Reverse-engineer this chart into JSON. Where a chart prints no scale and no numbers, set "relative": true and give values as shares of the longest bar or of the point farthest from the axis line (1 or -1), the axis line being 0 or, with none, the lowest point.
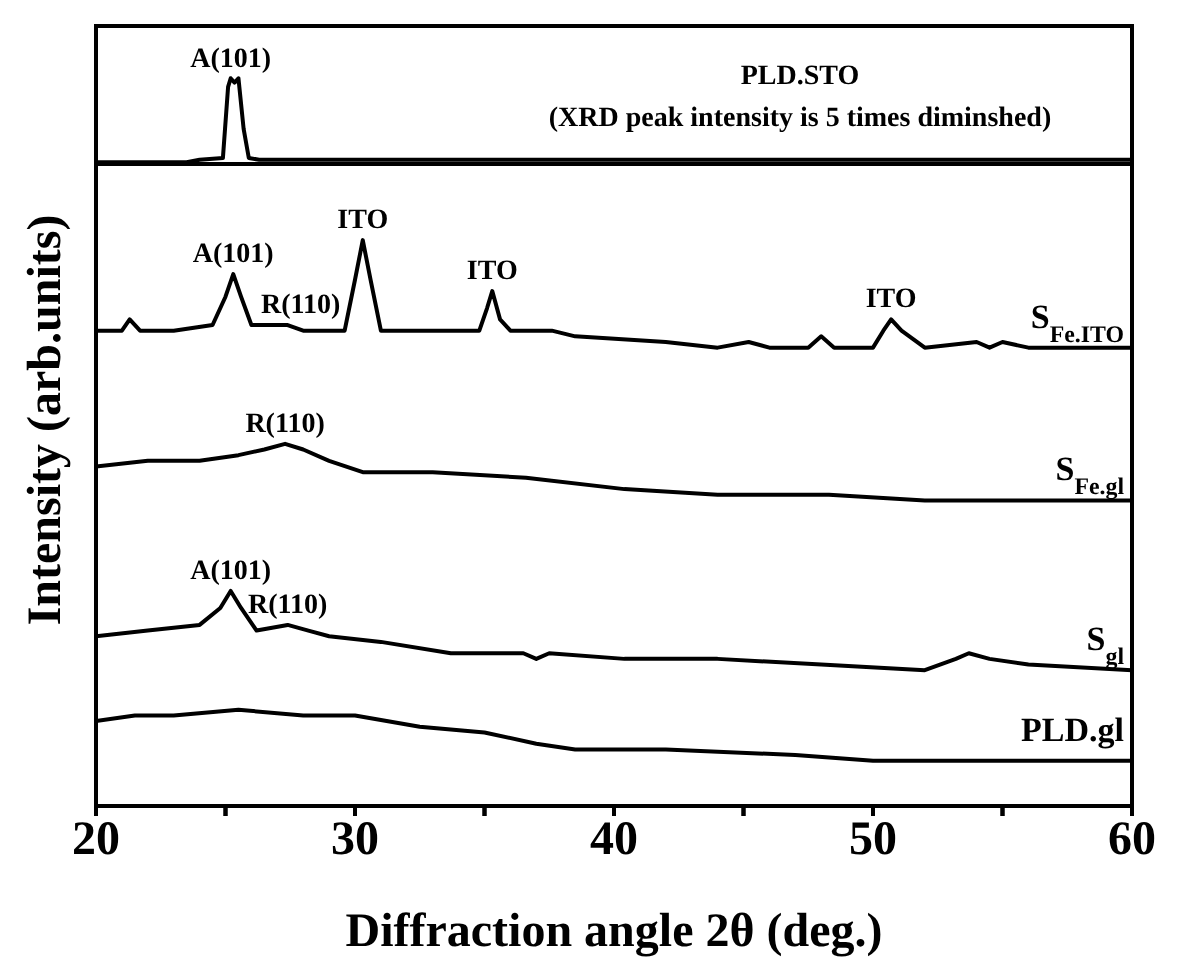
{
  "chart_data": [
    {
      "type": "line",
      "relative": true,
      "xlim": [
        20,
        60
      ],
      "tick_labels": false,
      "marker": "none",
      "annotations": [
        {
          "text": "A(101)",
          "x": 25.2,
          "y": 1
        },
        "(XRD peak intensity is 5 times diminshed)"
      ],
      "series": [
        {
          "name": "PLD.STO",
          "color": "#000000",
          "x": [
            20,
            23.5,
            24,
            24.9,
            25.1,
            25.2,
            25.35,
            25.5,
            25.7,
            25.9,
            26.3,
            60
          ],
          "values": [
            0.02,
            0.02,
            0.05,
            0.07,
            0.9,
            1,
            0.95,
            1,
            0.41,
            0.07,
            0.05,
            0.05
          ]
        }
      ]
    },
    {
      "type": "line",
      "relative": true,
      "xlim": [
        20,
        60
      ],
      "xticks": [
        20,
        {
          "value": 25,
          "label": null
        },
        30,
        {
          "value": 35,
          "label": null
        },
        40,
        {
          "value": 45,
          "label": null
        },
        50,
        {
          "value": 55,
          "label": null
        },
        60
      ],
      "xlabel": "Diffraction angle 2θ  (deg.)",
      "ylabel": "Intensity (arb.units)",
      "tick_labels": "x",
      "marker": "none",
      "annotations": [
        {
          "text": "A(101)",
          "x": 25.3,
          "y": 0.94
        },
        {
          "text": "R(110)",
          "x": 27.9,
          "y": 0.85
        },
        {
          "text": "ITO",
          "x": 30.3,
          "y": 1
        },
        {
          "text": "ITO",
          "x": 35.3,
          "y": 0.91
        },
        {
          "text": "ITO",
          "x": 50.7,
          "y": 0.86
        },
        {
          "text": "R(110)",
          "x": 27.3,
          "y": 0.64
        },
        {
          "text": "A(101)",
          "x": 25.2,
          "y": 0.38
        },
        {
          "text": "R(110)",
          "x": 27.4,
          "y": 0.32
        }
      ],
      "series": [
        {
          "name": "S$_{Fe.ITO}$",
          "color": "#000000",
          "x": [
            20,
            21,
            21.3,
            21.7,
            23,
            24.5,
            25,
            25.3,
            25.6,
            26,
            27,
            27.4,
            28,
            29.6,
            30,
            30.3,
            30.6,
            31,
            33,
            34.8,
            35.1,
            35.3,
            35.6,
            36,
            37.6,
            38.5,
            42,
            44,
            45.2,
            46,
            47.5,
            48,
            48.5,
            50,
            50.4,
            50.7,
            51.1,
            52,
            54,
            54.5,
            55,
            56,
            58,
            60
          ],
          "values": [
            0.84,
            0.84,
            0.86,
            0.84,
            0.84,
            0.85,
            0.9,
            0.94,
            0.9,
            0.85,
            0.85,
            0.85,
            0.84,
            0.84,
            0.93,
            1,
            0.93,
            0.84,
            0.84,
            0.84,
            0.88,
            0.91,
            0.86,
            0.84,
            0.84,
            0.83,
            0.82,
            0.81,
            0.82,
            0.81,
            0.81,
            0.83,
            0.81,
            0.81,
            0.84,
            0.86,
            0.84,
            0.81,
            0.82,
            0.81,
            0.82,
            0.81,
            0.81,
            0.81
          ]
        },
        {
          "name": "S$_{Fe.gl}$",
          "color": "#000000",
          "x": [
            20,
            22,
            24,
            25.5,
            26.5,
            27.3,
            28,
            29,
            30.3,
            33,
            36.6,
            40.4,
            44,
            48.3,
            52,
            56,
            60
          ],
          "values": [
            0.6,
            0.61,
            0.61,
            0.62,
            0.63,
            0.64,
            0.63,
            0.61,
            0.59,
            0.59,
            0.58,
            0.56,
            0.55,
            0.55,
            0.54,
            0.54,
            0.54
          ]
        },
        {
          "name": "S$_{gl}$",
          "color": "#000000",
          "x": [
            20,
            22,
            24,
            24.8,
            25.2,
            25.6,
            26.2,
            27.4,
            28.2,
            29,
            31,
            33.7,
            36.5,
            37,
            37.5,
            40.4,
            44,
            48,
            52,
            53.2,
            53.7,
            54.5,
            56,
            60
          ],
          "values": [
            0.3,
            0.31,
            0.32,
            0.35,
            0.38,
            0.35,
            0.31,
            0.32,
            0.31,
            0.3,
            0.29,
            0.27,
            0.27,
            0.26,
            0.27,
            0.26,
            0.26,
            0.25,
            0.24,
            0.26,
            0.27,
            0.26,
            0.25,
            0.24
          ]
        },
        {
          "name": "PLD.gl",
          "color": "#000000",
          "x": [
            20,
            21.5,
            23,
            25.5,
            28,
            30,
            32.5,
            35,
            37,
            38.5,
            42,
            47,
            50,
            55,
            60
          ],
          "values": [
            0.15,
            0.16,
            0.16,
            0.17,
            0.16,
            0.16,
            0.14,
            0.13,
            0.11,
            0.1,
            0.1,
            0.09,
            0.08,
            0.08,
            0.08
          ]
        }
      ]
    }
  ]
}
